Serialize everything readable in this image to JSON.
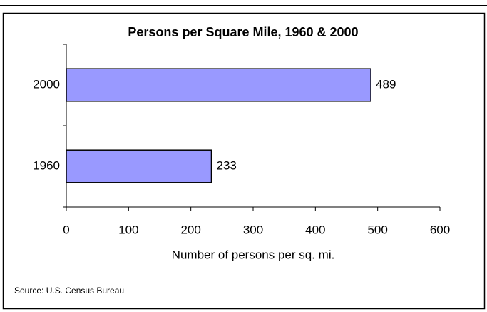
{
  "chart_data": {
    "type": "bar",
    "orientation": "horizontal",
    "title": "Persons per Square Mile, 1960 & 2000",
    "categories": [
      "2000",
      "1960"
    ],
    "values": [
      489,
      233
    ],
    "color": "#9999ff",
    "xlim": [
      0,
      600
    ],
    "xticks": [
      0,
      100,
      200,
      300,
      400,
      500,
      600
    ],
    "xlabel": "Number of persons per sq. mi.",
    "source": "Source: U.S. Census Bureau",
    "grid": false
  }
}
